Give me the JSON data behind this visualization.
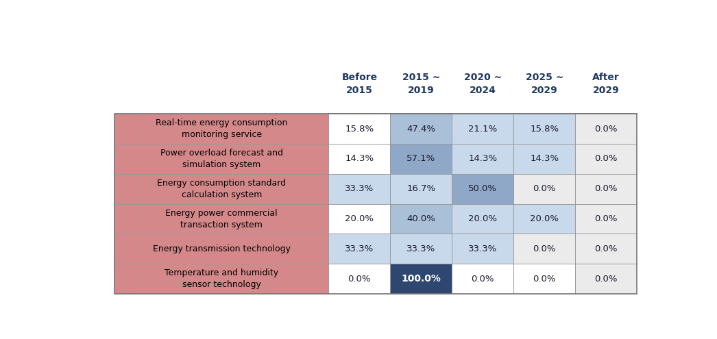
{
  "col_headers": [
    "Before\n2015",
    "2015 ~\n2019",
    "2020 ~\n2024",
    "2025 ~\n2029",
    "After\n2029"
  ],
  "row_labels": [
    "Real-time energy consumption\nmonitoring service",
    "Power overload forecast and\nsimulation system",
    "Energy consumption standard\ncalculation system",
    "Energy power commercial\ntransaction system",
    "Energy transmission technology",
    "Temperature and humidity\nsensor technology"
  ],
  "values": [
    [
      "15.8%",
      "47.4%",
      "21.1%",
      "15.8%",
      "0.0%"
    ],
    [
      "14.3%",
      "57.1%",
      "14.3%",
      "14.3%",
      "0.0%"
    ],
    [
      "33.3%",
      "16.7%",
      "50.0%",
      "0.0%",
      "0.0%"
    ],
    [
      "20.0%",
      "40.0%",
      "20.0%",
      "20.0%",
      "0.0%"
    ],
    [
      "33.3%",
      "33.3%",
      "33.3%",
      "0.0%",
      "0.0%"
    ],
    [
      "0.0%",
      "100.0%",
      "0.0%",
      "0.0%",
      "0.0%"
    ]
  ],
  "numeric_values": [
    [
      15.8,
      47.4,
      21.1,
      15.8,
      0.0
    ],
    [
      14.3,
      57.1,
      14.3,
      14.3,
      0.0
    ],
    [
      33.3,
      16.7,
      50.0,
      0.0,
      0.0
    ],
    [
      20.0,
      40.0,
      20.0,
      20.0,
      0.0
    ],
    [
      33.3,
      33.3,
      33.3,
      0.0,
      0.0
    ],
    [
      0.0,
      100.0,
      0.0,
      0.0,
      0.0
    ]
  ],
  "cell_colors": [
    [
      "#FFFFFF",
      "#AABFD8",
      "#C8D9EC",
      "#C8D9EC",
      "#EBEBEB"
    ],
    [
      "#FFFFFF",
      "#8FA8C8",
      "#C8D9EC",
      "#C8D9EC",
      "#EBEBEB"
    ],
    [
      "#C8D9EC",
      "#C8D9EC",
      "#8FA8C8",
      "#EBEBEB",
      "#EBEBEB"
    ],
    [
      "#FFFFFF",
      "#AABFD8",
      "#C8D9EC",
      "#C8D9EC",
      "#EBEBEB"
    ],
    [
      "#C8D9EC",
      "#C8D9EC",
      "#C8D9EC",
      "#EBEBEB",
      "#EBEBEB"
    ],
    [
      "#FFFFFF",
      "#2E4770",
      "#FFFFFF",
      "#FFFFFF",
      "#EBEBEB"
    ]
  ],
  "row_label_bg": "#D4888A",
  "header_text_color": "#1F3864",
  "cell_text_color": "#1a1a2e",
  "border_color": "#999999",
  "figure_bg": "#FFFFFF",
  "table_outer_border": "#777777"
}
